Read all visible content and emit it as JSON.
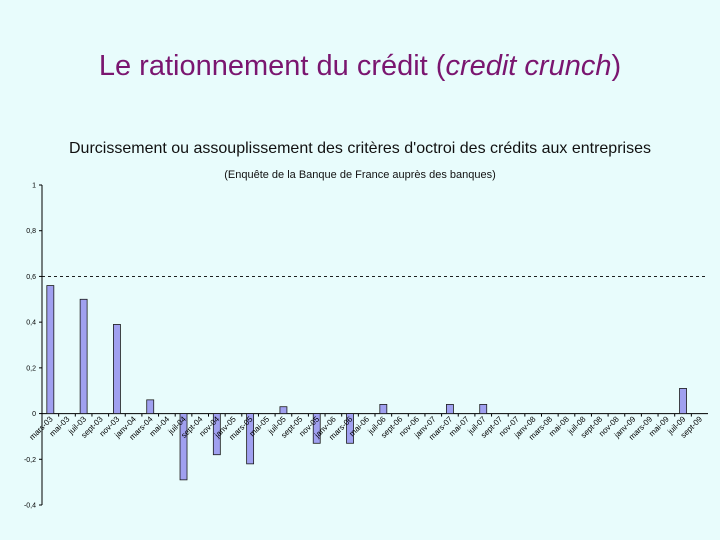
{
  "slide": {
    "title_main": "Le rationnement du crédit (",
    "title_em": "credit crunch",
    "title_end": ")"
  },
  "chart_data": {
    "type": "bar",
    "title": "Durcissement ou assouplissement des critères d'octroi des crédits aux entreprises",
    "subtitle": "(Enquête de la Banque de France auprès des banques)",
    "bar_color": "#a0a0f0",
    "bar_stroke": "#1a1a1a",
    "grid": "dashed line at 0.6",
    "ylim": [
      -0.4,
      1.0
    ],
    "yticks": [
      {
        "value": 1,
        "label": "1"
      },
      {
        "value": 0.8,
        "label": "0,8"
      },
      {
        "value": 0.6,
        "label": "0,6"
      },
      {
        "value": 0.4,
        "label": "0,4"
      },
      {
        "value": 0.2,
        "label": "0,2"
      },
      {
        "value": 0,
        "label": "0"
      },
      {
        "value": -0.2,
        "label": "-0,2"
      },
      {
        "value": -0.4,
        "label": "-0,4"
      }
    ],
    "categories": [
      "mars-03",
      "mai-03",
      "juil-03",
      "sept-03",
      "nov-03",
      "janv-04",
      "mars-04",
      "mai-04",
      "juil-04",
      "sept-04",
      "nov-04",
      "janv-05",
      "mars-05",
      "mai-05",
      "juil-05",
      "sept-05",
      "nov-05",
      "janv-06",
      "mars-06",
      "mai-06",
      "juil-06",
      "sept-06",
      "nov-06",
      "janv-07",
      "mars-07",
      "mai-07",
      "juil-07",
      "sept-07",
      "nov-07",
      "janv-08",
      "mars-08",
      "mai-08",
      "juil-08",
      "sept-08",
      "nov-08",
      "janv-09",
      "mars-09",
      "mai-09",
      "juil-09",
      "sept-09"
    ],
    "series": [
      {
        "values": [
          0.56,
          null,
          0.5,
          null,
          0.39,
          null,
          0.06,
          null,
          -0.29,
          null,
          -0.18,
          null,
          -0.22,
          null,
          0.03,
          null,
          -0.13,
          null,
          -0.13,
          null,
          0.04,
          null,
          null,
          null,
          0.04,
          null,
          0.04,
          null,
          null,
          null,
          null,
          null,
          null,
          null,
          null,
          null,
          null,
          null,
          0.11,
          null
        ]
      }
    ]
  }
}
